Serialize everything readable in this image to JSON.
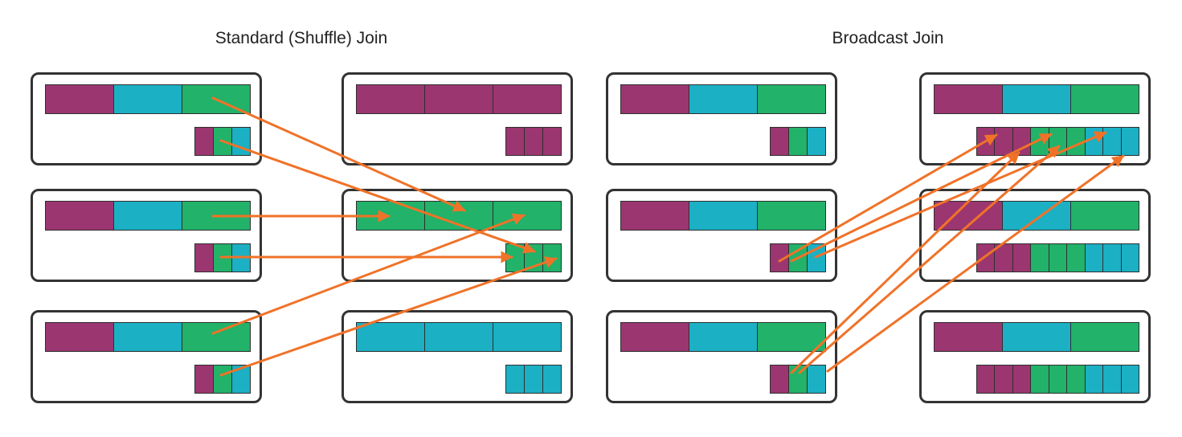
{
  "titles": {
    "shuffle": "Standard (Shuffle) Join",
    "broadcast": "Broadcast Join"
  },
  "colors": {
    "purple": "#9c3670",
    "cyan": "#1bb0c4",
    "green": "#22b269",
    "arrow": "#f07228",
    "border": "#333333"
  },
  "shuffle_join": {
    "left_nodes": [
      {
        "large": [
          "purple",
          "cyan",
          "green"
        ],
        "small": [
          "purple",
          "green",
          "cyan"
        ]
      },
      {
        "large": [
          "purple",
          "cyan",
          "green"
        ],
        "small": [
          "purple",
          "green",
          "cyan"
        ]
      },
      {
        "large": [
          "purple",
          "cyan",
          "green"
        ],
        "small": [
          "purple",
          "green",
          "cyan"
        ]
      }
    ],
    "right_nodes": [
      {
        "large": [
          "purple",
          "purple",
          "purple"
        ],
        "small": [
          "purple",
          "purple",
          "purple"
        ]
      },
      {
        "large": [
          "green",
          "green",
          "green"
        ],
        "small": [
          "green",
          "green",
          "green"
        ]
      },
      {
        "large": [
          "cyan",
          "cyan",
          "cyan"
        ],
        "small": [
          "cyan",
          "cyan",
          "cyan"
        ]
      }
    ]
  },
  "broadcast_join": {
    "left_nodes": [
      {
        "large": [
          "purple",
          "cyan",
          "green"
        ],
        "small": [
          "purple",
          "green",
          "cyan"
        ]
      },
      {
        "large": [
          "purple",
          "cyan",
          "green"
        ],
        "small": [
          "purple",
          "green",
          "cyan"
        ]
      },
      {
        "large": [
          "purple",
          "cyan",
          "green"
        ],
        "small": [
          "purple",
          "green",
          "cyan"
        ]
      }
    ],
    "right_nodes": [
      {
        "large": [
          "purple",
          "cyan",
          "green"
        ],
        "small": [
          "purple",
          "purple",
          "purple",
          "green",
          "green",
          "green",
          "cyan",
          "cyan",
          "cyan"
        ]
      },
      {
        "large": [
          "purple",
          "cyan",
          "green"
        ],
        "small": [
          "purple",
          "purple",
          "purple",
          "green",
          "green",
          "green",
          "cyan",
          "cyan",
          "cyan"
        ]
      },
      {
        "large": [
          "purple",
          "cyan",
          "green"
        ],
        "small": [
          "purple",
          "purple",
          "purple",
          "green",
          "green",
          "green",
          "cyan",
          "cyan",
          "cyan"
        ]
      }
    ]
  }
}
